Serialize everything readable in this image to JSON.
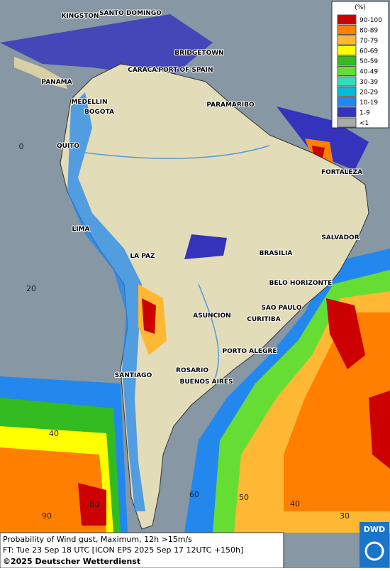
{
  "map": {
    "cities": [
      "KINGSTON",
      "SANTO DOMINGO",
      "BRIDGETOWN",
      "CARACAS",
      "PORT OF SPAIN",
      "PANAMA",
      "MEDELLIN",
      "BOGOTA",
      "PARAMARIBO",
      "QUITO",
      "FORTALEZA",
      "LIMA",
      "SALVADOR",
      "LA PAZ",
      "BRASILIA",
      "BELO HORIZONTE",
      "SAO PAULO",
      "ASUNCION",
      "CURITIBA",
      "PORTO ALEGRE",
      "SANTIAGO",
      "ROSARIO",
      "BUENOS AIRES"
    ],
    "grid_labels": [
      "0",
      "20",
      "40",
      "90",
      "80",
      "60",
      "50",
      "40",
      "30"
    ]
  },
  "legend": {
    "title": "(%)",
    "items": [
      {
        "label": "90-100",
        "color": "#cc0000"
      },
      {
        "label": "80-89",
        "color": "#ff7f00"
      },
      {
        "label": "70-79",
        "color": "#ffb833"
      },
      {
        "label": "60-69",
        "color": "#ffff00"
      },
      {
        "label": "50-59",
        "color": "#33bb22"
      },
      {
        "label": "40-49",
        "color": "#66dd33"
      },
      {
        "label": "30-39",
        "color": "#33ddbb"
      },
      {
        "label": "20-29",
        "color": "#00bbdd"
      },
      {
        "label": "10-19",
        "color": "#2288ee"
      },
      {
        "label": "1-9",
        "color": "#3333bb"
      },
      {
        "label": "<1",
        "color": "#aaaaaa"
      }
    ]
  },
  "footer": {
    "lines": [
      "Probability of Wind gust, Maximum, 12h >15m/s",
      "FT: Tue 23 Sep 18 UTC [ICON EPS 2025 Sep 17 12UTC +150h]",
      "©2025 Deutscher Wetterdienst"
    ]
  },
  "logo": "DWD"
}
